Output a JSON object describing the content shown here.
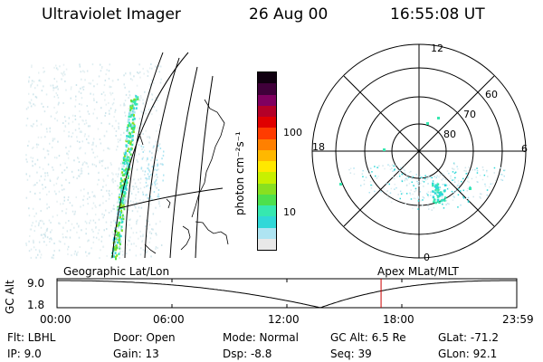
{
  "header": {
    "instrument": "Ultraviolet Imager",
    "date": "26 Aug 00",
    "time": "16:55:08 UT"
  },
  "map": {
    "projection_label": "Geographic Lat/Lon"
  },
  "colorbar": {
    "unit_label": "photon cm⁻²s⁻¹",
    "ticks": [
      "100",
      "10"
    ],
    "colors": [
      "#e8e8e8",
      "#aee4f2",
      "#30d8d8",
      "#36e8b0",
      "#4de04d",
      "#88e020",
      "#c8f000",
      "#ffe800",
      "#ffb800",
      "#ff8000",
      "#ff3c00",
      "#e00000",
      "#b40028",
      "#800060",
      "#40003a",
      "#100010"
    ]
  },
  "polar": {
    "mlt_labels": {
      "top": "12",
      "right": "6",
      "bottom": "0",
      "left": "18"
    },
    "lat_labels": [
      "60",
      "70",
      "80"
    ],
    "frame_label": "Apex MLat/MLT"
  },
  "altitude_plot": {
    "ylabel": "GC Alt",
    "y_ticks": [
      "9.0",
      "1.8"
    ],
    "x_ticks": [
      "00:00",
      "06:00",
      "12:00",
      "18:00",
      "23:59"
    ],
    "marker_time": "16:55",
    "marker_color": "#cc0000"
  },
  "status": {
    "col1": [
      "Flt: LBHL",
      "IP:  9.0"
    ],
    "col2": [
      "Door: Open",
      "Gain: 13"
    ],
    "col3": [
      "Mode: Normal",
      "Dsp:   -8.8"
    ],
    "col4": [
      "GC Alt: 6.5 Re",
      "Seq: 39"
    ],
    "col5": [
      "GLat: -71.2",
      "GLon:  92.1"
    ]
  }
}
